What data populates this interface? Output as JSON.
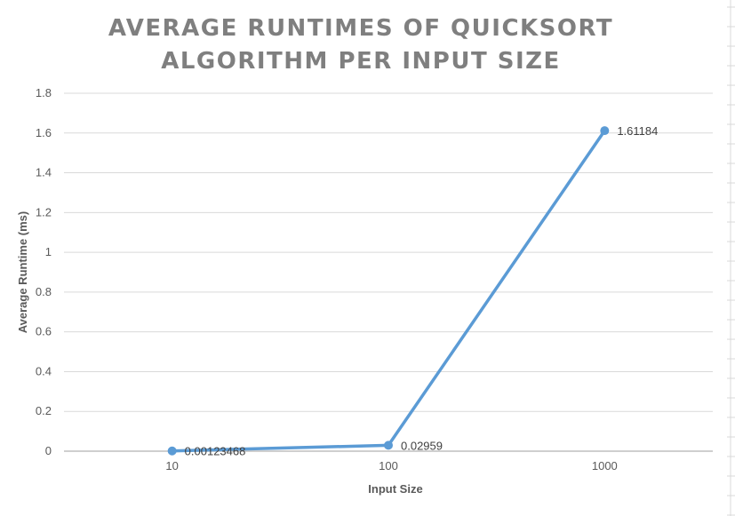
{
  "chart_data": {
    "type": "line",
    "title_lines": [
      "AVERAGE RUNTIMES OF QUICKSORT",
      "ALGORITHM PER INPUT SIZE"
    ],
    "xlabel": "Input Size",
    "ylabel": "Average Runtime (ms)",
    "categories": [
      "10",
      "100",
      "1000"
    ],
    "values": [
      0.00123468,
      0.02959,
      1.61184
    ],
    "data_labels": [
      "0.00123468",
      "0.02959",
      "1.61184"
    ],
    "ylim": [
      0,
      1.8
    ],
    "yticks": [
      0,
      0.2,
      0.4,
      0.6,
      0.8,
      1,
      1.2,
      1.4,
      1.6,
      1.8
    ],
    "ytick_labels": [
      "0",
      "0.2",
      "0.4",
      "0.6",
      "0.8",
      "1",
      "1.2",
      "1.4",
      "1.6",
      "1.8"
    ],
    "grid": true,
    "legend": "none",
    "colors": {
      "series": "#5b9bd5",
      "grid": "#d9d9d9",
      "axis": "#bfbfbf",
      "title": "#7f7f7f",
      "text": "#595959"
    }
  }
}
